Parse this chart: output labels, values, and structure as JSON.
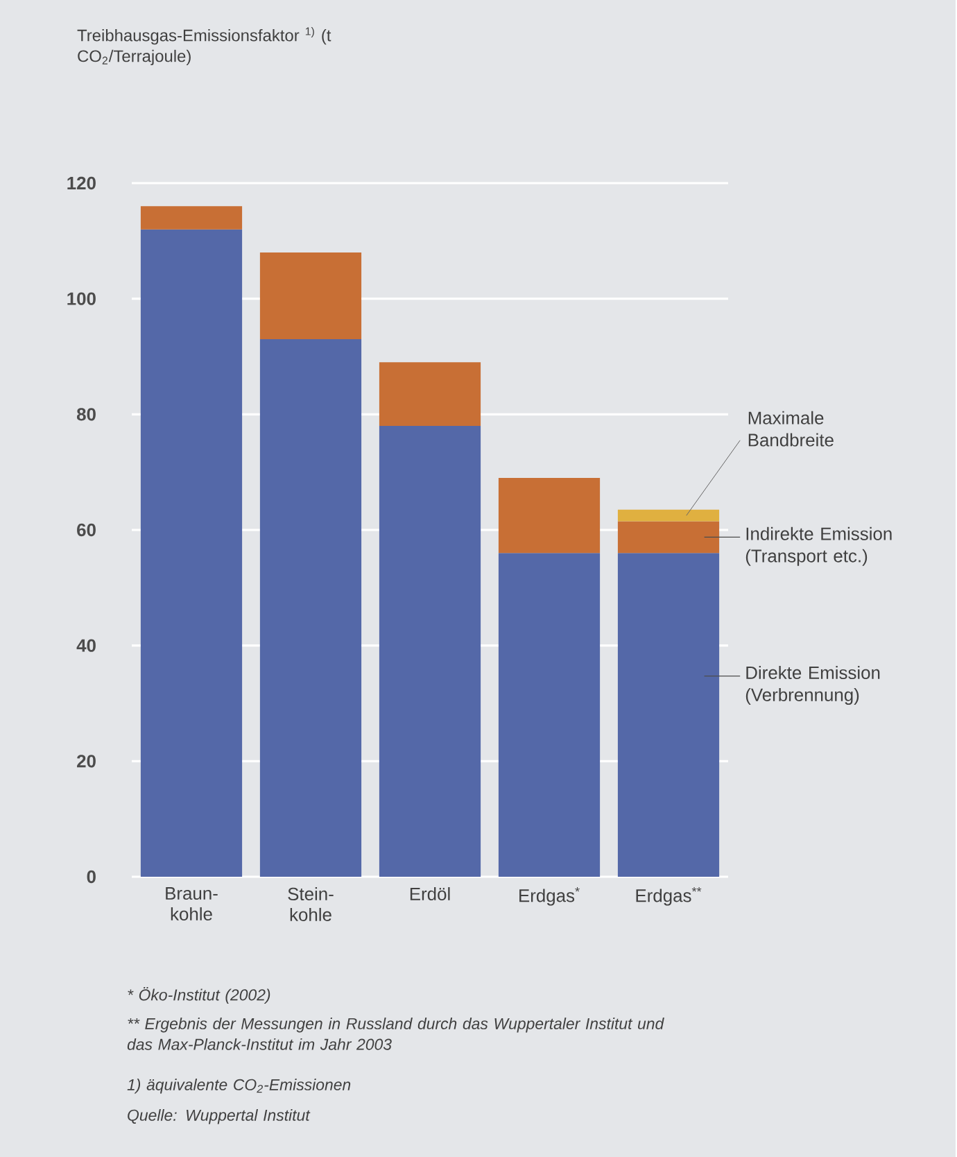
{
  "chart_data": {
    "type": "bar",
    "stacked": true,
    "ylabel": "Treibhausgas-Emissionsfaktor $^{1)}$ (t CO$_{2}$/Terrajoule)",
    "categories": [
      "Braun- kohle",
      "Stein- kohle",
      "Erdöl",
      "Erdgas$^{*}$",
      "Erdgas$^{**}$"
    ],
    "series": [
      {
        "name": "Direkte Emission (Verbrennung)",
        "color": "#5468a8",
        "values": [
          112,
          93,
          78,
          56,
          56
        ]
      },
      {
        "name": "Indirekte Emission (Transport etc.)",
        "color": "#c86f35",
        "values": [
          4,
          15,
          11,
          13,
          5.5
        ]
      },
      {
        "name": "Maximale Bandbreite",
        "color": "#e0b040",
        "values": [
          null,
          null,
          null,
          null,
          2
        ]
      }
    ],
    "ylim": [
      0,
      120
    ],
    "yticks": [
      0,
      20,
      40,
      60,
      80,
      100,
      120
    ],
    "grid": "y",
    "annotations": [
      "*  Öko-Institut (2002)",
      "**  Ergebnis der Messungen in Russland durch das Wuppertaler Institut und das Max-Planck-Institut im Jahr 2003",
      "1)  äquivalente CO$_{2}$-Emissionen",
      "Quelle: Wuppertal Institut"
    ]
  }
}
